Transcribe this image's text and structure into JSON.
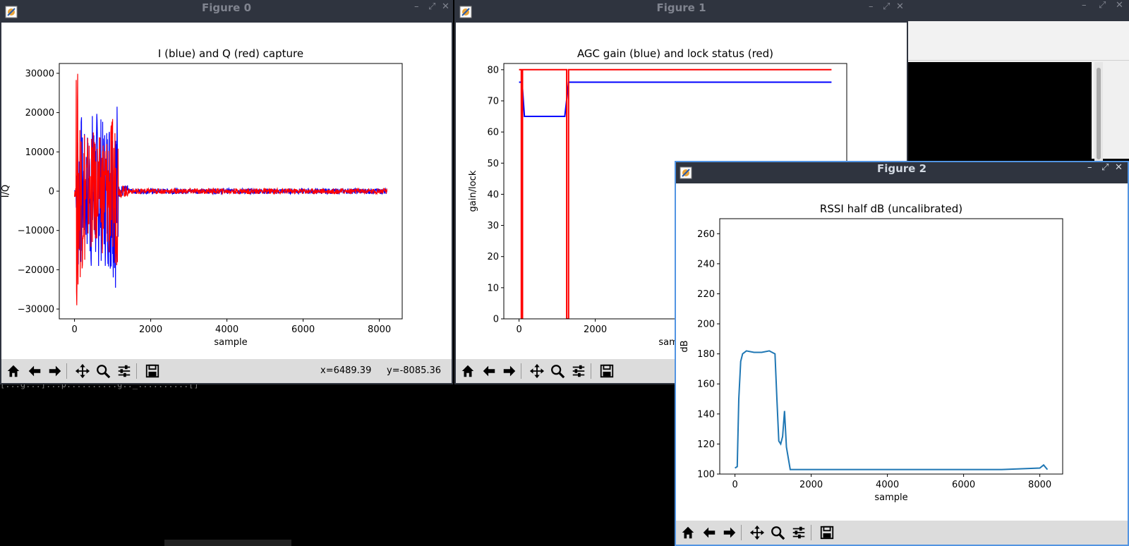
{
  "windows": {
    "fig0": {
      "title": "Figure 0",
      "coords": {
        "x": "x=6489.39",
        "y": "y=-8085.36"
      }
    },
    "fig1": {
      "title": "Figure 1"
    },
    "fig2": {
      "title": "Figure 2"
    }
  },
  "toolbar_icons": [
    "home-icon",
    "back-arrow-icon",
    "forward-arrow-icon",
    "pan-icon",
    "zoom-icon",
    "configure-subplots-icon",
    "save-icon"
  ],
  "terminal_fragment": "[...g...]...p..........g.._..........[]",
  "chart_data": [
    {
      "type": "line",
      "title": "I (blue) and Q (red) capture",
      "xlabel": "sample",
      "ylabel": "I/Q",
      "xlim": [
        -400,
        8600
      ],
      "ylim": [
        -32500,
        32500
      ],
      "xticks": [
        0,
        2000,
        4000,
        6000,
        8000
      ],
      "yticks": [
        -30000,
        -20000,
        -10000,
        0,
        10000,
        20000,
        30000
      ],
      "series": [
        {
          "color": "#0000ff",
          "description_points": [
            [
              0,
              0
            ],
            [
              60,
              5000
            ],
            [
              100,
              -22000
            ],
            [
              150,
              20000
            ],
            [
              200,
              -15000
            ],
            [
              300,
              12000
            ],
            [
              400,
              -16000
            ],
            [
              500,
              21000
            ],
            [
              600,
              -20000
            ],
            [
              700,
              18000
            ],
            [
              800,
              -15000
            ],
            [
              900,
              20000
            ],
            [
              1000,
              -22000
            ],
            [
              1050,
              15000
            ],
            [
              1100,
              -25000
            ],
            [
              1150,
              -1500
            ],
            [
              1250,
              0
            ],
            [
              1300,
              5000
            ],
            [
              1350,
              -1000
            ],
            [
              2000,
              500
            ],
            [
              4000,
              -500
            ],
            [
              6000,
              400
            ],
            [
              8200,
              0
            ]
          ]
        },
        {
          "color": "#ff0000",
          "description_points": [
            [
              0,
              0
            ],
            [
              60,
              31000
            ],
            [
              100,
              -23500
            ],
            [
              150,
              24000
            ],
            [
              200,
              -20000
            ],
            [
              300,
              13000
            ],
            [
              400,
              -15000
            ],
            [
              500,
              12000
            ],
            [
              600,
              -14000
            ],
            [
              700,
              10000
            ],
            [
              800,
              -16000
            ],
            [
              900,
              11000
            ],
            [
              1000,
              -18000
            ],
            [
              1100,
              -19000
            ],
            [
              1150,
              -1200
            ],
            [
              1300,
              -500
            ],
            [
              2000,
              400
            ],
            [
              4000,
              -300
            ],
            [
              6000,
              300
            ],
            [
              8200,
              0
            ]
          ]
        }
      ],
      "status": {
        "x": "x=6489.39",
        "y": "y=-8085.36"
      }
    },
    {
      "type": "line",
      "title": "AGC gain (blue) and lock status (red)",
      "xlabel": "sample",
      "ylabel": "gain/lock",
      "xlim": [
        -400,
        8600
      ],
      "ylim": [
        0,
        82
      ],
      "xticks": [
        0,
        2000
      ],
      "yticks": [
        0,
        10,
        20,
        30,
        40,
        50,
        60,
        70,
        80
      ],
      "series": [
        {
          "color": "#0000ff",
          "points": [
            [
              0,
              76
            ],
            [
              80,
              76
            ],
            [
              140,
              65
            ],
            [
              1200,
              65
            ],
            [
              1300,
              76
            ],
            [
              8200,
              76
            ]
          ]
        },
        {
          "color": "#ff0000",
          "points": [
            [
              0,
              80
            ],
            [
              60,
              80
            ],
            [
              60,
              0
            ],
            [
              90,
              0
            ],
            [
              90,
              80
            ],
            [
              1250,
              80
            ],
            [
              1250,
              0
            ],
            [
              1300,
              0
            ],
            [
              1300,
              80
            ],
            [
              8200,
              80
            ]
          ]
        }
      ]
    },
    {
      "type": "line",
      "title": "RSSI half dB (uncalibrated)",
      "xlabel": "sample",
      "ylabel": "dB",
      "xlim": [
        -400,
        8600
      ],
      "ylim": [
        100,
        270
      ],
      "xticks": [
        0,
        2000,
        4000,
        6000,
        8000
      ],
      "yticks": [
        100,
        120,
        140,
        160,
        180,
        200,
        220,
        240,
        260
      ],
      "series": [
        {
          "color": "#1f77b4",
          "points": [
            [
              0,
              104
            ],
            [
              60,
              105
            ],
            [
              100,
              150
            ],
            [
              150,
              175
            ],
            [
              200,
              180
            ],
            [
              300,
              182
            ],
            [
              500,
              181
            ],
            [
              700,
              181
            ],
            [
              900,
              182
            ],
            [
              1050,
              180
            ],
            [
              1100,
              150
            ],
            [
              1150,
              122
            ],
            [
              1200,
              120
            ],
            [
              1250,
              125
            ],
            [
              1300,
              142
            ],
            [
              1350,
              118
            ],
            [
              1450,
              103
            ],
            [
              2000,
              103
            ],
            [
              3000,
              103
            ],
            [
              4000,
              103
            ],
            [
              5000,
              103
            ],
            [
              6000,
              103
            ],
            [
              7000,
              103
            ],
            [
              8000,
              104
            ],
            [
              8100,
              106
            ],
            [
              8200,
              103
            ]
          ]
        }
      ]
    }
  ]
}
